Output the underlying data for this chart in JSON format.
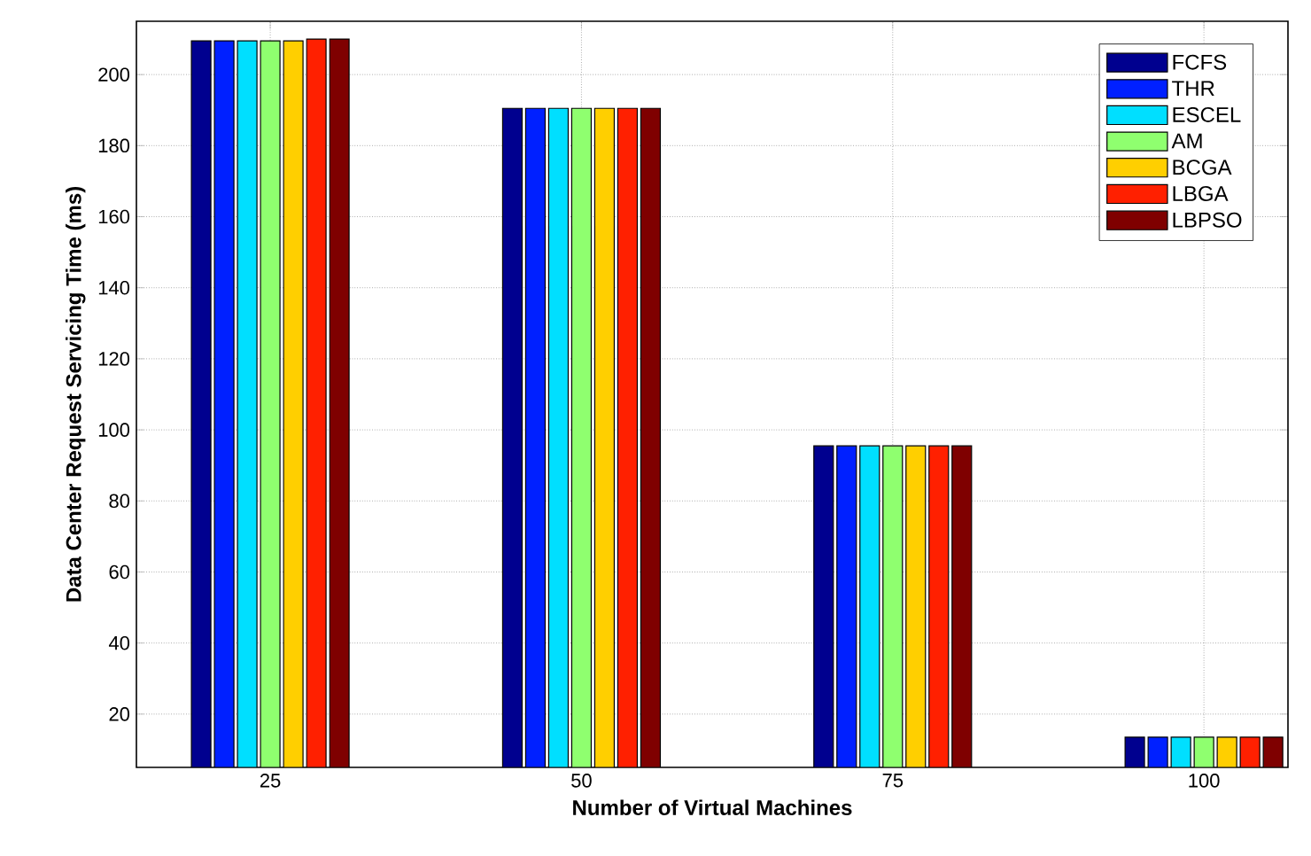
{
  "chart_data": {
    "type": "bar",
    "xlabel": "Number of Virtual Machines",
    "ylabel": "Data Center Request Servicing Time (ms)",
    "categories": [
      "25",
      "50",
      "75",
      "100"
    ],
    "series": [
      {
        "name": "FCFS",
        "color": "#00008f",
        "values": [
          209.5,
          190.5,
          95.5,
          13.5
        ]
      },
      {
        "name": "THR",
        "color": "#0020ff",
        "values": [
          209.5,
          190.5,
          95.5,
          13.5
        ]
      },
      {
        "name": "ESCEL",
        "color": "#00dfff",
        "values": [
          209.5,
          190.5,
          95.5,
          13.5
        ]
      },
      {
        "name": "AM",
        "color": "#8fff6f",
        "values": [
          209.5,
          190.5,
          95.5,
          13.5
        ]
      },
      {
        "name": "BCGA",
        "color": "#ffcf00",
        "values": [
          209.5,
          190.5,
          95.5,
          13.5
        ]
      },
      {
        "name": "LBGA",
        "color": "#ff2000",
        "values": [
          210,
          190.5,
          95.5,
          13.5
        ]
      },
      {
        "name": "LBPSO",
        "color": "#7f0000",
        "values": [
          210,
          190.5,
          95.5,
          13.5
        ]
      }
    ],
    "ylim": [
      5,
      215
    ],
    "yticks": [
      20,
      40,
      60,
      80,
      100,
      120,
      140,
      160,
      180,
      200
    ],
    "grid": true,
    "legend": "top right"
  }
}
